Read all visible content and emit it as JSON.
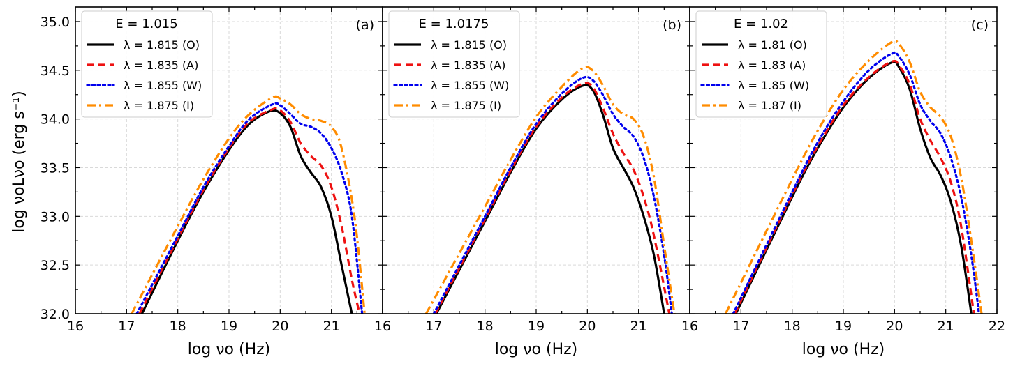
{
  "chart_data": [
    {
      "type": "line",
      "panel_label": "(a)",
      "legend_title": "E = 1.015",
      "xlim": [
        16,
        22
      ],
      "ylim": [
        32.0,
        35.15
      ],
      "series": [
        {
          "name": "λ = 1.815 (O)",
          "color": "#000000",
          "style": "solid",
          "x": [
            17.3,
            18.0,
            18.5,
            19.0,
            19.4,
            19.8,
            20.0,
            20.2,
            20.4,
            20.6,
            20.8,
            21.0,
            21.2,
            21.4
          ],
          "y": [
            32.0,
            32.75,
            33.25,
            33.68,
            33.95,
            34.08,
            34.06,
            33.92,
            33.62,
            33.45,
            33.3,
            33.0,
            32.5,
            32.0
          ]
        },
        {
          "name": "λ = 1.835 (A)",
          "color": "#ee1111",
          "style": "dashed",
          "x": [
            17.25,
            18.0,
            18.5,
            19.0,
            19.4,
            19.85,
            20.0,
            20.2,
            20.4,
            20.6,
            20.8,
            21.0,
            21.2,
            21.4,
            21.55
          ],
          "y": [
            32.0,
            32.77,
            33.27,
            33.7,
            33.97,
            34.1,
            34.09,
            33.97,
            33.75,
            33.62,
            33.52,
            33.3,
            32.9,
            32.35,
            32.0
          ]
        },
        {
          "name": "λ = 1.855 (W)",
          "color": "#0000ee",
          "style": "dotted",
          "x": [
            17.2,
            18.0,
            18.5,
            19.0,
            19.4,
            19.85,
            20.0,
            20.2,
            20.4,
            20.6,
            20.8,
            21.0,
            21.2,
            21.4,
            21.6
          ],
          "y": [
            32.0,
            32.8,
            33.3,
            33.72,
            34.0,
            34.15,
            34.14,
            34.05,
            33.95,
            33.92,
            33.85,
            33.7,
            33.45,
            33.0,
            32.0
          ]
        },
        {
          "name": "λ = 1.875 (I)",
          "color": "#ff8c00",
          "style": "dashdot",
          "x": [
            17.1,
            18.0,
            18.5,
            19.0,
            19.4,
            19.85,
            20.0,
            20.2,
            20.4,
            20.6,
            20.8,
            21.0,
            21.2,
            21.45,
            21.65
          ],
          "y": [
            32.0,
            32.9,
            33.38,
            33.8,
            34.05,
            34.22,
            34.21,
            34.15,
            34.05,
            34.0,
            33.98,
            33.92,
            33.7,
            33.0,
            32.0
          ]
        }
      ]
    },
    {
      "type": "line",
      "panel_label": "(b)",
      "legend_title": "E = 1.0175",
      "xlim": [
        16,
        22
      ],
      "ylim": [
        32.0,
        35.15
      ],
      "series": [
        {
          "name": "λ = 1.815 (O)",
          "color": "#000000",
          "style": "solid",
          "x": [
            17.05,
            18.0,
            18.5,
            19.0,
            19.5,
            19.9,
            20.1,
            20.3,
            20.5,
            20.7,
            20.9,
            21.1,
            21.3,
            21.5
          ],
          "y": [
            32.0,
            32.95,
            33.45,
            33.9,
            34.2,
            34.34,
            34.3,
            34.05,
            33.7,
            33.5,
            33.3,
            33.0,
            32.6,
            32.0
          ]
        },
        {
          "name": "λ = 1.835 (A)",
          "color": "#ee1111",
          "style": "dashed",
          "x": [
            17.03,
            18.0,
            18.5,
            19.0,
            19.5,
            19.9,
            20.1,
            20.3,
            20.5,
            20.7,
            20.9,
            21.1,
            21.3,
            21.6
          ],
          "y": [
            32.0,
            32.97,
            33.47,
            33.92,
            34.22,
            34.36,
            34.33,
            34.12,
            33.85,
            33.65,
            33.48,
            33.2,
            32.8,
            32.0
          ]
        },
        {
          "name": "λ = 1.855 (W)",
          "color": "#0000ee",
          "style": "dotted",
          "x": [
            17.0,
            18.0,
            18.5,
            19.0,
            19.5,
            19.9,
            20.1,
            20.3,
            20.5,
            20.7,
            20.9,
            21.1,
            21.3,
            21.5,
            21.65
          ],
          "y": [
            32.0,
            33.0,
            33.5,
            33.95,
            34.26,
            34.42,
            34.4,
            34.25,
            34.05,
            33.92,
            33.82,
            33.6,
            33.2,
            32.6,
            32.0
          ]
        },
        {
          "name": "λ = 1.875 (I)",
          "color": "#ff8c00",
          "style": "dashdot",
          "x": [
            16.85,
            18.0,
            18.5,
            19.0,
            19.5,
            19.9,
            20.1,
            20.3,
            20.5,
            20.7,
            20.9,
            21.1,
            21.3,
            21.5,
            21.7
          ],
          "y": [
            32.0,
            33.1,
            33.58,
            34.02,
            34.33,
            34.52,
            34.5,
            34.35,
            34.15,
            34.05,
            34.0,
            33.82,
            33.4,
            32.7,
            32.0
          ]
        }
      ]
    },
    {
      "type": "line",
      "panel_label": "(c)",
      "legend_title": "E = 1.02",
      "xlim": [
        16,
        22
      ],
      "ylim": [
        32.0,
        35.15
      ],
      "series": [
        {
          "name": "λ = 1.81 (O)",
          "color": "#000000",
          "style": "solid",
          "x": [
            16.9,
            18.0,
            18.5,
            19.0,
            19.5,
            19.95,
            20.1,
            20.3,
            20.5,
            20.7,
            20.9,
            21.1,
            21.3,
            21.5
          ],
          "y": [
            32.0,
            33.2,
            33.7,
            34.12,
            34.42,
            34.58,
            34.52,
            34.3,
            33.9,
            33.6,
            33.42,
            33.15,
            32.7,
            32.0
          ]
        },
        {
          "name": "λ = 1.83 (A)",
          "color": "#ee1111",
          "style": "dashed",
          "x": [
            16.88,
            18.0,
            18.5,
            19.0,
            19.5,
            19.95,
            20.1,
            20.3,
            20.5,
            20.7,
            20.9,
            21.1,
            21.3,
            21.55
          ],
          "y": [
            32.0,
            33.22,
            33.72,
            34.14,
            34.43,
            34.59,
            34.54,
            34.35,
            34.0,
            33.78,
            33.6,
            33.35,
            32.9,
            32.0
          ]
        },
        {
          "name": "λ = 1.85 (W)",
          "color": "#0000ee",
          "style": "dotted",
          "x": [
            16.85,
            18.0,
            18.5,
            19.0,
            19.5,
            19.95,
            20.1,
            20.3,
            20.5,
            20.7,
            20.9,
            21.1,
            21.3,
            21.5,
            21.65
          ],
          "y": [
            32.0,
            33.25,
            33.76,
            34.18,
            34.5,
            34.67,
            34.63,
            34.45,
            34.15,
            33.98,
            33.85,
            33.6,
            33.2,
            32.6,
            32.0
          ]
        },
        {
          "name": "λ = 1.87 (I)",
          "color": "#ff8c00",
          "style": "dashdot",
          "x": [
            16.7,
            18.0,
            18.5,
            19.0,
            19.5,
            19.95,
            20.1,
            20.3,
            20.5,
            20.7,
            20.9,
            21.1,
            21.3,
            21.5,
            21.7
          ],
          "y": [
            32.0,
            33.38,
            33.88,
            34.3,
            34.6,
            34.79,
            34.76,
            34.58,
            34.28,
            34.12,
            34.02,
            33.82,
            33.4,
            32.75,
            32.0
          ]
        }
      ]
    }
  ],
  "axes": {
    "ylabel": "log νoLνo (erg s⁻¹)",
    "xlabel": "log νo (Hz)",
    "yticks": [
      32.0,
      32.5,
      33.0,
      33.5,
      34.0,
      34.5,
      35.0
    ],
    "ytick_labels": [
      "32.0",
      "32.5",
      "33.0",
      "33.5",
      "34.0",
      "34.5",
      "35.0"
    ],
    "xticks_panel_ab": [
      16,
      17,
      18,
      19,
      20,
      21
    ],
    "xticks_panel_c": [
      16,
      17,
      18,
      19,
      20,
      21,
      22
    ],
    "xtick_labels_panel_ab": [
      "16",
      "17",
      "18",
      "19",
      "20",
      "21"
    ],
    "xtick_labels_panel_c": [
      "16",
      "17",
      "18",
      "19",
      "20",
      "21",
      "22"
    ]
  }
}
